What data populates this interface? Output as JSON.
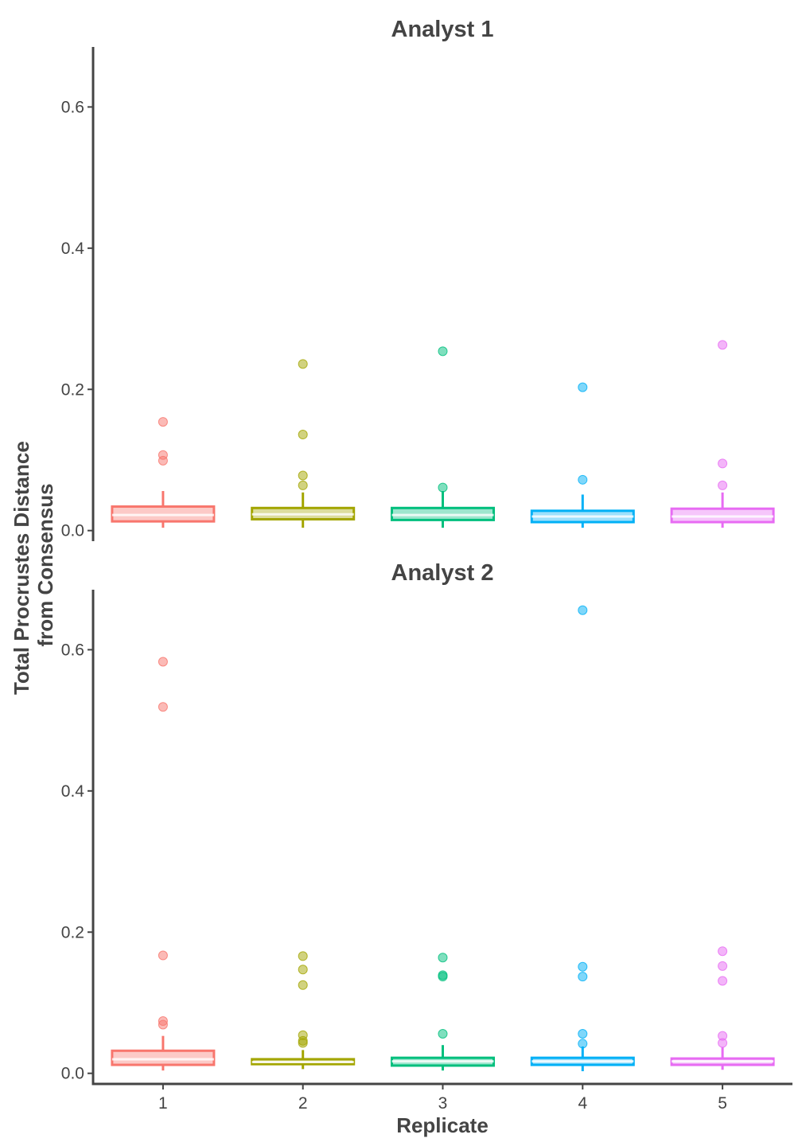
{
  "chart_data": {
    "type": "boxplot",
    "layout": "faceted-vertical",
    "xlabel": "Replicate",
    "ylabel_lines": [
      "Total Procrustes Distance",
      "from Consensus"
    ],
    "categories": [
      "1",
      "2",
      "3",
      "4",
      "5"
    ],
    "ylim": [
      -0.015,
      0.685
    ],
    "yticks": [
      0.0,
      0.2,
      0.4,
      0.6
    ],
    "ytick_labels": [
      "0.0",
      "0.2",
      "0.4",
      "0.6"
    ],
    "grid": false,
    "legend": "none",
    "colors": [
      "#F8766D",
      "#A3A500",
      "#00BF7D",
      "#00B0F6",
      "#E76BF3"
    ],
    "panels": [
      {
        "title": "Analyst 1",
        "boxes": [
          {
            "category": "1",
            "lower_whisker": 0.004,
            "q1": 0.013,
            "median": 0.022,
            "q3": 0.034,
            "upper_whisker": 0.056,
            "outliers": [
              0.154,
              0.107,
              0.099
            ]
          },
          {
            "category": "2",
            "lower_whisker": 0.004,
            "q1": 0.016,
            "median": 0.023,
            "q3": 0.032,
            "upper_whisker": 0.054,
            "outliers": [
              0.236,
              0.136,
              0.078,
              0.064
            ]
          },
          {
            "category": "3",
            "lower_whisker": 0.004,
            "q1": 0.015,
            "median": 0.022,
            "q3": 0.032,
            "upper_whisker": 0.056,
            "outliers": [
              0.254,
              0.061
            ]
          },
          {
            "category": "4",
            "lower_whisker": 0.004,
            "q1": 0.012,
            "median": 0.02,
            "q3": 0.028,
            "upper_whisker": 0.051,
            "outliers": [
              0.203,
              0.072
            ]
          },
          {
            "category": "5",
            "lower_whisker": 0.004,
            "q1": 0.012,
            "median": 0.02,
            "q3": 0.031,
            "upper_whisker": 0.054,
            "outliers": [
              0.263,
              0.095,
              0.064
            ]
          }
        ]
      },
      {
        "title": "Analyst 2",
        "boxes": [
          {
            "category": "1",
            "lower_whisker": 0.004,
            "q1": 0.012,
            "median": 0.02,
            "q3": 0.032,
            "upper_whisker": 0.053,
            "outliers": [
              0.583,
              0.519,
              0.167,
              0.074,
              0.069
            ]
          },
          {
            "category": "2",
            "lower_whisker": 0.006,
            "q1": 0.013,
            "median": 0.016,
            "q3": 0.02,
            "upper_whisker": 0.033,
            "outliers": [
              0.166,
              0.147,
              0.125,
              0.054,
              0.046,
              0.043
            ]
          },
          {
            "category": "3",
            "lower_whisker": 0.004,
            "q1": 0.011,
            "median": 0.017,
            "q3": 0.022,
            "upper_whisker": 0.04,
            "outliers": [
              0.164,
              0.139,
              0.137,
              0.056
            ]
          },
          {
            "category": "4",
            "lower_whisker": 0.003,
            "q1": 0.012,
            "median": 0.017,
            "q3": 0.022,
            "upper_whisker": 0.038,
            "outliers": [
              0.656,
              0.151,
              0.137,
              0.056,
              0.042
            ]
          },
          {
            "category": "5",
            "lower_whisker": 0.005,
            "q1": 0.012,
            "median": 0.017,
            "q3": 0.021,
            "upper_whisker": 0.037,
            "outliers": [
              0.173,
              0.152,
              0.131,
              0.053,
              0.043
            ]
          }
        ]
      }
    ]
  }
}
